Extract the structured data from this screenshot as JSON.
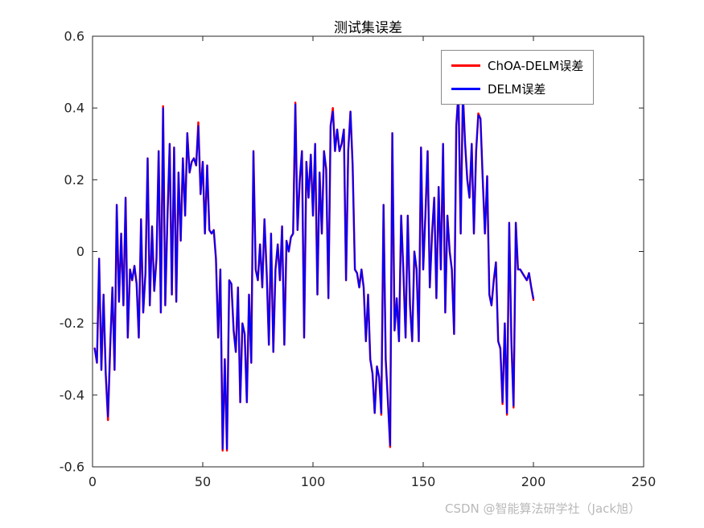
{
  "page": {
    "background": "#ffffff"
  },
  "watermark": {
    "text": "CSDN @智能算法研学社（Jack旭）",
    "color": "#b9b9b9"
  },
  "axis": {
    "color": "#262626",
    "tick_font_size": 16
  },
  "chart_data": {
    "type": "line",
    "title": "测试集误差",
    "xlabel": "",
    "ylabel": "",
    "xlim": [
      0,
      250
    ],
    "ylim": [
      -0.6,
      0.6
    ],
    "xticks": [
      0,
      50,
      100,
      150,
      200,
      250
    ],
    "yticks": [
      -0.6,
      -0.4,
      -0.2,
      0,
      0.2,
      0.4,
      0.6
    ],
    "grid": false,
    "legend_position": "upper-right-inside",
    "x": {
      "start": 1,
      "step": 1,
      "count": 200,
      "meaning": "test sample index"
    },
    "series": [
      {
        "name": "ChOA-DELM误差",
        "color": "#ff0000",
        "line_width": 2.5,
        "values": [
          -0.27,
          -0.31,
          -0.02,
          -0.33,
          -0.12,
          -0.34,
          -0.47,
          -0.27,
          -0.1,
          -0.33,
          0.13,
          -0.14,
          0.05,
          -0.15,
          0.15,
          -0.24,
          -0.05,
          -0.08,
          -0.04,
          -0.09,
          -0.24,
          0.09,
          -0.17,
          -0.06,
          0.26,
          -0.15,
          0.07,
          -0.11,
          -0.02,
          0.28,
          -0.17,
          0.405,
          -0.15,
          0.1,
          0.3,
          -0.12,
          0.29,
          -0.14,
          0.22,
          0.03,
          0.26,
          0.1,
          0.33,
          0.22,
          0.25,
          0.26,
          0.24,
          0.36,
          0.16,
          0.25,
          0.05,
          0.24,
          0.06,
          0.05,
          0.06,
          -0.02,
          -0.24,
          -0.05,
          -0.555,
          -0.3,
          -0.555,
          -0.08,
          -0.09,
          -0.22,
          -0.28,
          -0.1,
          -0.42,
          -0.2,
          -0.23,
          -0.42,
          -0.12,
          -0.31,
          0.28,
          -0.05,
          -0.08,
          0.02,
          -0.1,
          0.09,
          -0.06,
          -0.26,
          0.05,
          -0.28,
          -0.05,
          0.02,
          -0.08,
          0.07,
          -0.26,
          0.03,
          0.0,
          0.04,
          0.05,
          0.415,
          0.06,
          0.2,
          0.28,
          -0.24,
          0.25,
          0.15,
          0.27,
          0.1,
          0.3,
          -0.12,
          0.22,
          0.05,
          0.28,
          0.23,
          -0.13,
          0.35,
          0.4,
          0.28,
          0.34,
          0.28,
          0.3,
          0.34,
          -0.08,
          0.28,
          0.39,
          0.24,
          -0.05,
          -0.06,
          -0.1,
          -0.05,
          -0.1,
          -0.25,
          -0.12,
          -0.3,
          -0.34,
          -0.45,
          -0.32,
          -0.35,
          -0.455,
          0.13,
          -0.3,
          -0.42,
          -0.545,
          0.33,
          -0.22,
          -0.13,
          -0.25,
          0.1,
          -0.05,
          -0.24,
          0.1,
          -0.15,
          -0.25,
          0.0,
          -0.05,
          -0.25,
          0.29,
          -0.05,
          0.1,
          0.28,
          -0.1,
          0.05,
          0.15,
          -0.13,
          0.18,
          -0.05,
          0.3,
          -0.17,
          0.1,
          0.0,
          -0.05,
          -0.23,
          0.35,
          0.445,
          0.05,
          0.445,
          0.3,
          0.2,
          0.15,
          0.3,
          0.05,
          0.28,
          0.385,
          0.37,
          0.2,
          0.05,
          0.21,
          -0.12,
          -0.15,
          -0.08,
          -0.03,
          -0.25,
          -0.27,
          -0.425,
          -0.2,
          -0.455,
          0.08,
          -0.25,
          -0.435,
          0.08,
          -0.05,
          -0.05,
          -0.06,
          -0.07,
          -0.08,
          -0.06,
          -0.1,
          -0.135
        ]
      },
      {
        "name": "DELM误差",
        "color": "#0000ff",
        "line_width": 2,
        "values": [
          -0.27,
          -0.31,
          -0.02,
          -0.33,
          -0.12,
          -0.34,
          -0.46,
          -0.27,
          -0.1,
          -0.33,
          0.13,
          -0.14,
          0.05,
          -0.15,
          0.15,
          -0.24,
          -0.05,
          -0.08,
          -0.04,
          -0.09,
          -0.24,
          0.09,
          -0.17,
          -0.06,
          0.26,
          -0.15,
          0.07,
          -0.11,
          -0.02,
          0.28,
          -0.17,
          0.4,
          -0.15,
          0.1,
          0.3,
          -0.12,
          0.29,
          -0.14,
          0.22,
          0.03,
          0.26,
          0.1,
          0.33,
          0.22,
          0.25,
          0.26,
          0.24,
          0.35,
          0.16,
          0.25,
          0.05,
          0.24,
          0.06,
          0.05,
          0.06,
          -0.02,
          -0.24,
          -0.05,
          -0.55,
          -0.3,
          -0.55,
          -0.08,
          -0.09,
          -0.22,
          -0.28,
          -0.1,
          -0.42,
          -0.2,
          -0.23,
          -0.42,
          -0.12,
          -0.31,
          0.28,
          -0.05,
          -0.08,
          0.02,
          -0.1,
          0.09,
          -0.06,
          -0.26,
          0.05,
          -0.28,
          -0.05,
          0.02,
          -0.08,
          0.07,
          -0.26,
          0.03,
          0.0,
          0.04,
          0.05,
          0.41,
          0.06,
          0.2,
          0.28,
          -0.24,
          0.25,
          0.15,
          0.27,
          0.1,
          0.3,
          -0.12,
          0.22,
          0.05,
          0.28,
          0.23,
          -0.13,
          0.35,
          0.39,
          0.28,
          0.34,
          0.28,
          0.3,
          0.34,
          -0.08,
          0.28,
          0.39,
          0.24,
          -0.05,
          -0.06,
          -0.1,
          -0.05,
          -0.1,
          -0.25,
          -0.12,
          -0.3,
          -0.34,
          -0.45,
          -0.32,
          -0.35,
          -0.45,
          0.13,
          -0.3,
          -0.42,
          -0.54,
          0.33,
          -0.22,
          -0.13,
          -0.25,
          0.1,
          -0.05,
          -0.24,
          0.1,
          -0.15,
          -0.25,
          0.0,
          -0.05,
          -0.25,
          0.29,
          -0.05,
          0.1,
          0.28,
          -0.1,
          0.05,
          0.15,
          -0.13,
          0.18,
          -0.05,
          0.3,
          -0.17,
          0.1,
          0.0,
          -0.05,
          -0.23,
          0.35,
          0.44,
          0.05,
          0.44,
          0.3,
          0.2,
          0.15,
          0.3,
          0.05,
          0.28,
          0.38,
          0.37,
          0.2,
          0.05,
          0.21,
          -0.12,
          -0.15,
          -0.08,
          -0.03,
          -0.25,
          -0.27,
          -0.42,
          -0.2,
          -0.45,
          0.08,
          -0.25,
          -0.43,
          0.08,
          -0.05,
          -0.05,
          -0.06,
          -0.07,
          -0.08,
          -0.06,
          -0.1,
          -0.13
        ]
      }
    ]
  }
}
